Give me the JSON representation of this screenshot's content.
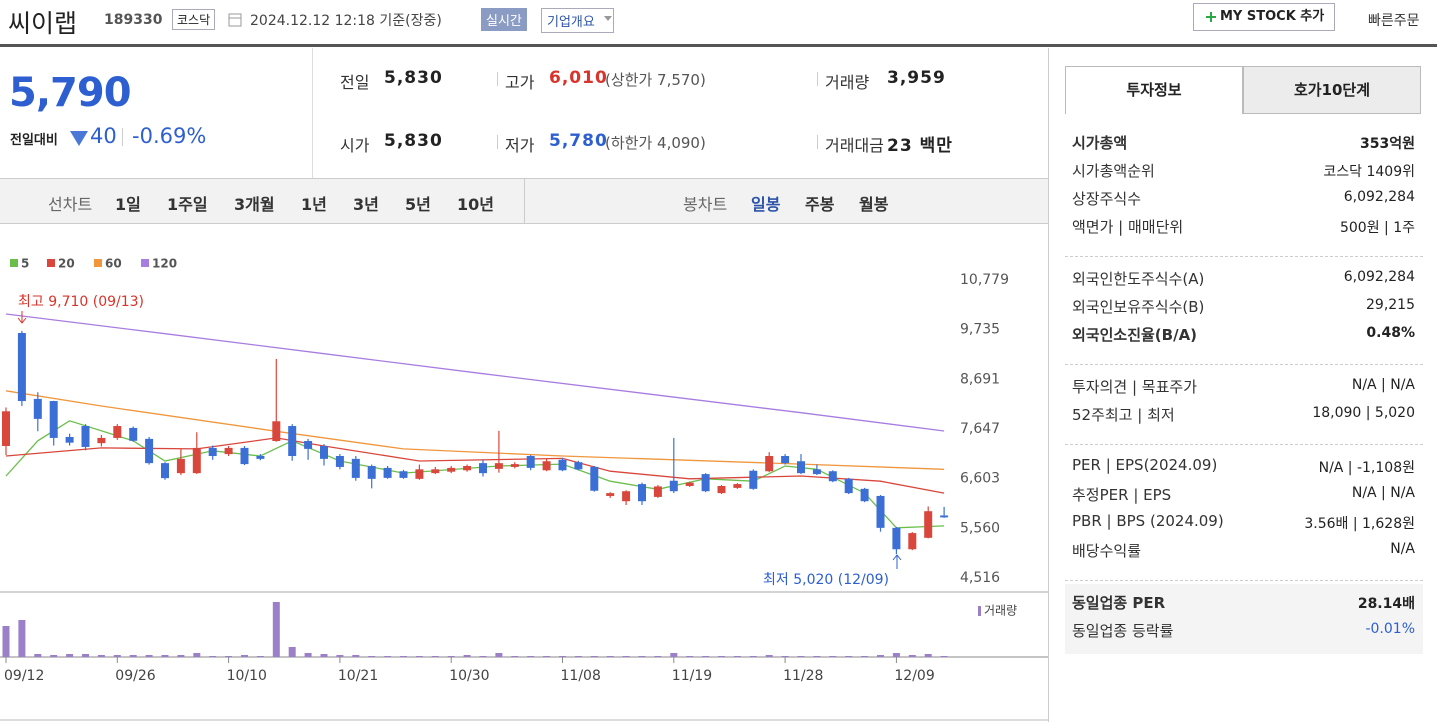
{
  "header": {
    "name": "씨이랩",
    "code": "189330",
    "market": "코스닥",
    "timestamp": "2024.12.12 12:18 기준(장중)",
    "realtime": "실시간",
    "company": "기업개요",
    "mystock": "MY STOCK 추가",
    "quick_order": "빠른주문"
  },
  "quote": {
    "price": "5,790",
    "change_label": "전일대비",
    "change": "40",
    "change_pct": "-0.69%",
    "items": [
      {
        "label": "전일",
        "value": "5,830"
      },
      {
        "label": "고가",
        "value": "6,010",
        "extra": "(상한가 7,570)"
      },
      {
        "label": "거래량",
        "value": "3,959"
      },
      {
        "label": "시가",
        "value": "5,830"
      },
      {
        "label": "저가",
        "value": "5,780",
        "extra": "(하한가 4,090)"
      },
      {
        "label": "거래대금",
        "value": "23 백만"
      }
    ]
  },
  "chart_tabs": {
    "line_label": "선차트",
    "line_periods": [
      "1일",
      "1주일",
      "3개월",
      "1년",
      "3년",
      "5년",
      "10년"
    ],
    "candle_label": "봉차트",
    "candle_periods": [
      "일봉",
      "주봉",
      "월봉"
    ]
  },
  "invest_panel": {
    "tabs": [
      "투자정보",
      "호가10단계"
    ],
    "groups": [
      [
        [
          "시가총액",
          "353억원"
        ],
        [
          "시가총액순위",
          "코스닥 1409위"
        ],
        [
          "상장주식수",
          "6,092,284"
        ],
        [
          "액면가 | 매매단위",
          "500원 | 1주"
        ]
      ],
      [
        [
          "외국인한도주식수(A)",
          "6,092,284"
        ],
        [
          "외국인보유주식수(B)",
          "29,215"
        ],
        [
          "외국인소진율(B/A)",
          "0.48%"
        ]
      ],
      [
        [
          "투자의견 | 목표주가",
          "N/A | N/A"
        ],
        [
          "52주최고 | 최저",
          "18,090 | 5,020"
        ]
      ],
      [
        [
          "PER | EPS(2024.09)",
          "N/A | -1,108원"
        ],
        [
          "추정PER | EPS",
          "N/A | N/A"
        ],
        [
          "PBR | BPS (2024.09)",
          "3.56배 | 1,628원"
        ],
        [
          "배당수익률",
          "N/A"
        ]
      ],
      [
        [
          "동일업종 PER",
          "28.14배"
        ],
        [
          "동일업종 등락률",
          "-0.01%"
        ]
      ]
    ]
  },
  "chart_data": {
    "type": "candlestick",
    "up_color": "#d9473c",
    "down_color": "#3b6fd6",
    "volume_color": "#9c7fc9",
    "volume_label": "거래량",
    "categories": [
      "09/12",
      null,
      null,
      null,
      null,
      null,
      null,
      "09/26",
      null,
      null,
      null,
      null,
      null,
      null,
      "10/10",
      null,
      null,
      null,
      null,
      null,
      null,
      "10/21",
      null,
      null,
      null,
      null,
      null,
      null,
      "10/30",
      null,
      null,
      null,
      null,
      null,
      null,
      "11/08",
      null,
      null,
      null,
      null,
      null,
      null,
      "11/19",
      null,
      null,
      null,
      null,
      null,
      null,
      "11/28",
      null,
      null,
      null,
      null,
      null,
      null,
      "12/09",
      null,
      null,
      null
    ],
    "open": [
      7290,
      9665,
      8280,
      8235,
      7480,
      7710,
      7350,
      7460,
      7670,
      7440,
      6930,
      6720,
      6720,
      7250,
      7120,
      7250,
      7080,
      7395,
      7710,
      7395,
      7290,
      7080,
      7020,
      6870,
      6830,
      6760,
      6600,
      6720,
      6750,
      6780,
      6930,
      6810,
      6850,
      7080,
      6780,
      7000,
      6950,
      6850,
      6240,
      6130,
      6490,
      6220,
      6560,
      6450,
      6700,
      6300,
      6410,
      6770,
      6760,
      7080,
      6970,
      6800,
      6760,
      6600,
      6390,
      6240,
      5570,
      5120,
      5360,
      5830
    ],
    "high": [
      8100,
      9710,
      8420,
      8240,
      7550,
      7750,
      7520,
      7750,
      7700,
      7480,
      6950,
      7230,
      7580,
      7300,
      7290,
      7290,
      7120,
      9120,
      7750,
      7440,
      7330,
      7120,
      7080,
      6900,
      6870,
      6790,
      6900,
      6850,
      6870,
      6900,
      7000,
      7610,
      6950,
      7100,
      7020,
      7040,
      6980,
      6870,
      6320,
      6360,
      6520,
      6470,
      7460,
      6540,
      6720,
      6470,
      6510,
      6800,
      7160,
      7120,
      7120,
      6900,
      6780,
      6620,
      6410,
      6260,
      5590,
      5480,
      6020,
      6010
    ],
    "low": [
      7100,
      8130,
      7600,
      7300,
      7300,
      7200,
      7280,
      7420,
      7380,
      6900,
      6580,
      6680,
      6700,
      7000,
      7080,
      6890,
      6990,
      7380,
      6980,
      7000,
      6880,
      6800,
      6560,
      6400,
      6600,
      6600,
      6580,
      6700,
      6720,
      6750,
      6650,
      6730,
      6820,
      6780,
      6760,
      6760,
      6780,
      6330,
      6200,
      6050,
      6050,
      6200,
      6300,
      6430,
      6320,
      6280,
      6390,
      6370,
      6740,
      6900,
      6700,
      6680,
      6530,
      6280,
      6110,
      5490,
      5020,
      5100,
      5350,
      5780
    ],
    "close": [
      8020,
      8235,
      7860,
      7460,
      7360,
      7270,
      7460,
      7710,
      7400,
      6930,
      6615,
      7020,
      7250,
      7080,
      7250,
      6910,
      7020,
      7810,
      7080,
      7230,
      7020,
      6850,
      6620,
      6600,
      6620,
      6620,
      6800,
      6800,
      6830,
      6870,
      6720,
      6930,
      6910,
      6830,
      6970,
      6780,
      6800,
      6350,
      6300,
      6340,
      6130,
      6440,
      6340,
      6520,
      6340,
      6450,
      6490,
      6390,
      7080,
      6930,
      6720,
      6700,
      6550,
      6300,
      6130,
      5570,
      5120,
      5460,
      5920,
      5790
    ],
    "volume": [
      31,
      37,
      3,
      2,
      3,
      3,
      2,
      2,
      2,
      2,
      2,
      2,
      4,
      1,
      1,
      2,
      1,
      55,
      10,
      4,
      3,
      2,
      2,
      1,
      1,
      1,
      1,
      1,
      1,
      2,
      1,
      4,
      1,
      1,
      1,
      1,
      1,
      1,
      1,
      1,
      1,
      1,
      4,
      1,
      1,
      1,
      1,
      1,
      2,
      1,
      1,
      1,
      1,
      1,
      1,
      2,
      4,
      2,
      3,
      1
    ],
    "series": [
      {
        "name": "5",
        "color": "#6abf4b",
        "x": [
          0,
          2,
          4,
          8,
          10,
          13,
          16,
          18,
          21,
          25,
          31,
          35,
          38,
          41,
          44,
          47,
          49,
          51,
          54,
          56,
          59
        ],
        "values": [
          6660,
          7400,
          7820,
          7400,
          6975,
          7190,
          7080,
          7400,
          6975,
          6720,
          6870,
          6910,
          6550,
          6380,
          6600,
          6550,
          6870,
          6800,
          6300,
          5570,
          5610
        ]
      },
      {
        "name": "20",
        "color": "#d9473c",
        "x": [
          0,
          6,
          12,
          17,
          20,
          26,
          35,
          38,
          43,
          50,
          55,
          59
        ],
        "values": [
          7080,
          7250,
          7230,
          7460,
          7290,
          6975,
          7030,
          6760,
          6600,
          6660,
          6550,
          6300
        ]
      },
      {
        "name": "60",
        "color": "#f0963c",
        "x": [
          0,
          6,
          17,
          25,
          35,
          50,
          59
        ],
        "values": [
          8450,
          8130,
          7600,
          7230,
          7080,
          6910,
          6800
        ]
      },
      {
        "name": "120",
        "color": "#a77de0",
        "x": [
          0,
          10,
          20,
          30,
          40,
          50,
          59
        ],
        "values": [
          10064,
          9650,
          9230,
          8810,
          8400,
          7990,
          7605
        ]
      }
    ],
    "ylim": [
      4516,
      10779
    ],
    "yticks": [
      {
        "value": 10779,
        "label": "10,779"
      },
      {
        "value": 9735,
        "label": "9,735"
      },
      {
        "value": 8691,
        "label": "8,691"
      },
      {
        "value": 7647,
        "label": "7,647"
      },
      {
        "value": 6603,
        "label": "6,603"
      },
      {
        "value": 5560,
        "label": "5,560"
      },
      {
        "value": 4516,
        "label": "4,516"
      }
    ],
    "annotations": [
      "최고 9,710 (09/13)",
      "최저 5,020 (12/09)"
    ]
  }
}
